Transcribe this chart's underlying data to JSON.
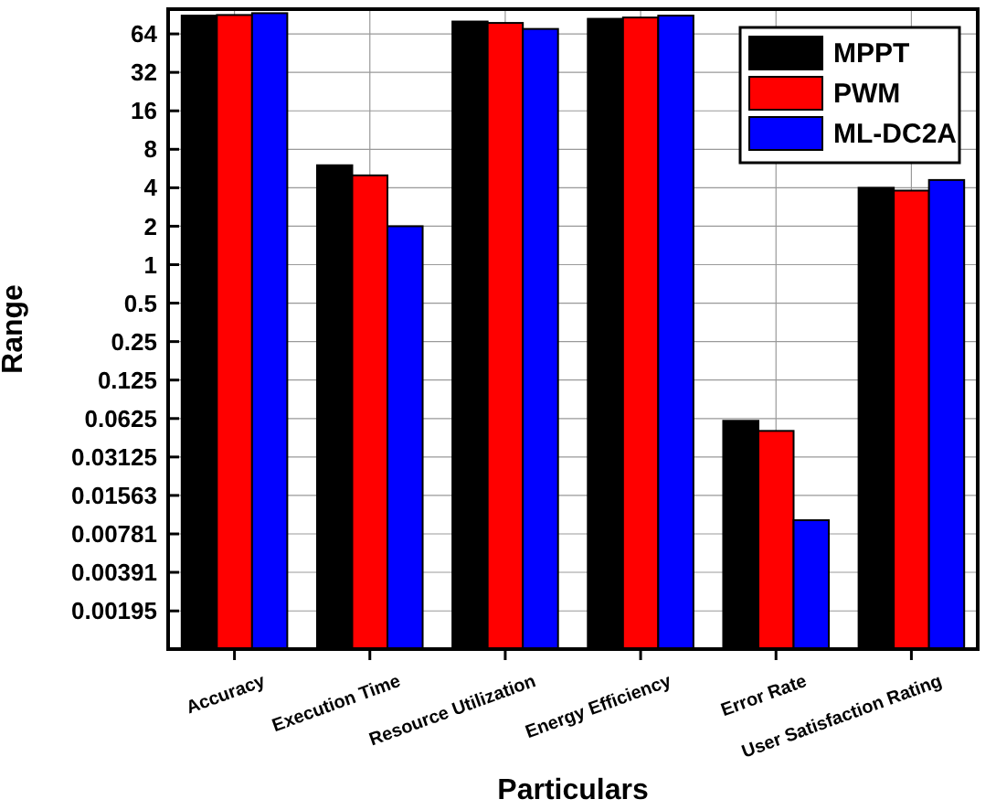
{
  "chart_data": {
    "type": "bar",
    "xlabel": "Particulars",
    "ylabel": "Range",
    "log": "y",
    "grid": true,
    "legend": "top right",
    "categories": [
      "Accuracy",
      "Execution Time",
      "Resource Utilization",
      "Energy Efficiency",
      "Error Rate",
      "User Satisfaction Rating"
    ],
    "series": [
      {
        "name": "MPPT",
        "color": "#000000",
        "values": [
          89,
          6,
          80,
          84,
          0.06,
          4
        ]
      },
      {
        "name": "PWM",
        "color": "#ff0000",
        "values": [
          90,
          5,
          78,
          86,
          0.05,
          3.8
        ]
      },
      {
        "name": "ML-DC2A",
        "color": "#0000ff",
        "values": [
          93,
          2,
          70,
          89,
          0.01,
          4.6
        ]
      }
    ],
    "ylim": [
      0.00098,
      100
    ],
    "yticks": [
      0.00195,
      0.00391,
      0.00781,
      0.01563,
      0.03125,
      0.0625,
      0.125,
      0.25,
      0.5,
      1,
      2,
      4,
      8,
      16,
      32,
      64
    ]
  }
}
